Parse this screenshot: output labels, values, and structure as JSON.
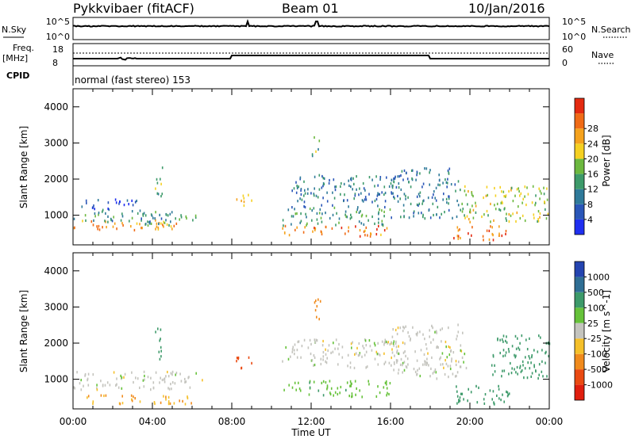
{
  "header": {
    "station": "Pykkvibaer (fitACF)",
    "beam": "Beam 01",
    "date": "10/Jan/2016"
  },
  "status_panel": {
    "nsky_label": "N.Sky",
    "nsearch_label": "N.Search",
    "freq_label_1": "Freq.",
    "freq_label_2": "[MHz]",
    "nave_label": "Nave",
    "cpid_label": "CPID",
    "nsky_ticks": [
      "10^5",
      "10^0"
    ],
    "nsearch_ticks": [
      "10^5",
      "10^0"
    ],
    "freq_ticks": [
      "18",
      "8"
    ],
    "nave_ticks": [
      "60",
      "0"
    ],
    "cpid_text": "normal (fast stereo) 153"
  },
  "axes": {
    "ylabel": "Slant Range [km]",
    "xlabel": "Time UT",
    "y_ticks": [
      "1000",
      "2000",
      "3000",
      "4000"
    ],
    "x_ticks": [
      "00:00",
      "04:00",
      "08:00",
      "12:00",
      "16:00",
      "20:00",
      "00:00"
    ]
  },
  "power_colorbar": {
    "label": "Power [dB]",
    "ticks": [
      "4",
      "8",
      "12",
      "16",
      "20",
      "24",
      "28"
    ],
    "colors": [
      "#1f2ff0",
      "#2a56b8",
      "#2f7a9a",
      "#3d9a6a",
      "#6cb83f",
      "#f5d021",
      "#f5a21d",
      "#f06b16",
      "#e42a10"
    ]
  },
  "velocity_colorbar": {
    "label": "Velocity [m s^-1]",
    "ticks": [
      "1000",
      "500",
      "100",
      "25",
      "-25",
      "-100",
      "-500",
      "-1000"
    ],
    "colors": [
      "#2444b0",
      "#2f6e94",
      "#3d9a6a",
      "#66c23a",
      "#c4c4be",
      "#f5c02a",
      "#f08a1c",
      "#ea4a12",
      "#e01e0e"
    ]
  },
  "chart_data": {
    "type": "heatmap",
    "x_range_hours": [
      0,
      24
    ],
    "y_range_km": [
      180,
      4500
    ],
    "panels": [
      {
        "name": "Power",
        "unit": "dB",
        "scatter_regions": [
          {
            "t0": 0.0,
            "t1": 5.2,
            "r0": 550,
            "r1": 850,
            "value": 24
          },
          {
            "t0": 0.0,
            "t1": 5.0,
            "r0": 800,
            "r1": 1150,
            "value": 10
          },
          {
            "t0": 0.3,
            "t1": 3.2,
            "r0": 1150,
            "r1": 1450,
            "value": 5
          },
          {
            "t0": 3.6,
            "t1": 6.2,
            "r0": 700,
            "r1": 1050,
            "value": 12
          },
          {
            "t0": 4.1,
            "t1": 4.5,
            "r0": 1500,
            "r1": 2500,
            "value": 14
          },
          {
            "t0": 8.2,
            "t1": 9.0,
            "r0": 1200,
            "r1": 1600,
            "value": 20
          },
          {
            "t0": 10.5,
            "t1": 15.8,
            "r0": 400,
            "r1": 700,
            "value": 26
          },
          {
            "t0": 10.5,
            "t1": 16.0,
            "r0": 700,
            "r1": 1200,
            "value": 12
          },
          {
            "t0": 11.0,
            "t1": 16.5,
            "r0": 1200,
            "r1": 2100,
            "value": 9
          },
          {
            "t0": 12.0,
            "t1": 12.4,
            "r0": 2600,
            "r1": 3200,
            "value": 14
          },
          {
            "t0": 16.0,
            "t1": 19.5,
            "r0": 900,
            "r1": 2300,
            "value": 9
          },
          {
            "t0": 19.0,
            "t1": 21.8,
            "r0": 300,
            "r1": 700,
            "value": 26
          },
          {
            "t0": 19.5,
            "t1": 24.0,
            "r0": 800,
            "r1": 1800,
            "value": 18
          }
        ]
      },
      {
        "name": "Velocity",
        "unit": "m s^-1",
        "scatter_regions": [
          {
            "t0": 0.0,
            "t1": 6.5,
            "r0": 700,
            "r1": 1200,
            "value": 0
          },
          {
            "t0": 0.5,
            "t1": 6.0,
            "r0": 300,
            "r1": 550,
            "value": -100
          },
          {
            "t0": 4.1,
            "t1": 4.5,
            "r0": 1500,
            "r1": 2500,
            "value": 200
          },
          {
            "t0": 8.2,
            "t1": 9.0,
            "r0": 1200,
            "r1": 1600,
            "value": -700
          },
          {
            "t0": 10.5,
            "t1": 16.5,
            "r0": 1300,
            "r1": 2100,
            "value": 0
          },
          {
            "t0": 10.5,
            "t1": 16.0,
            "r0": 500,
            "r1": 950,
            "value": 80
          },
          {
            "t0": 12.0,
            "t1": 12.5,
            "r0": 2600,
            "r1": 3200,
            "value": -300
          },
          {
            "t0": 16.0,
            "t1": 19.8,
            "r0": 1000,
            "r1": 2500,
            "value": 0
          },
          {
            "t0": 19.0,
            "t1": 22.0,
            "r0": 300,
            "r1": 800,
            "value": 150
          },
          {
            "t0": 21.0,
            "t1": 24.0,
            "r0": 1000,
            "r1": 2200,
            "value": 300
          }
        ]
      }
    ]
  }
}
